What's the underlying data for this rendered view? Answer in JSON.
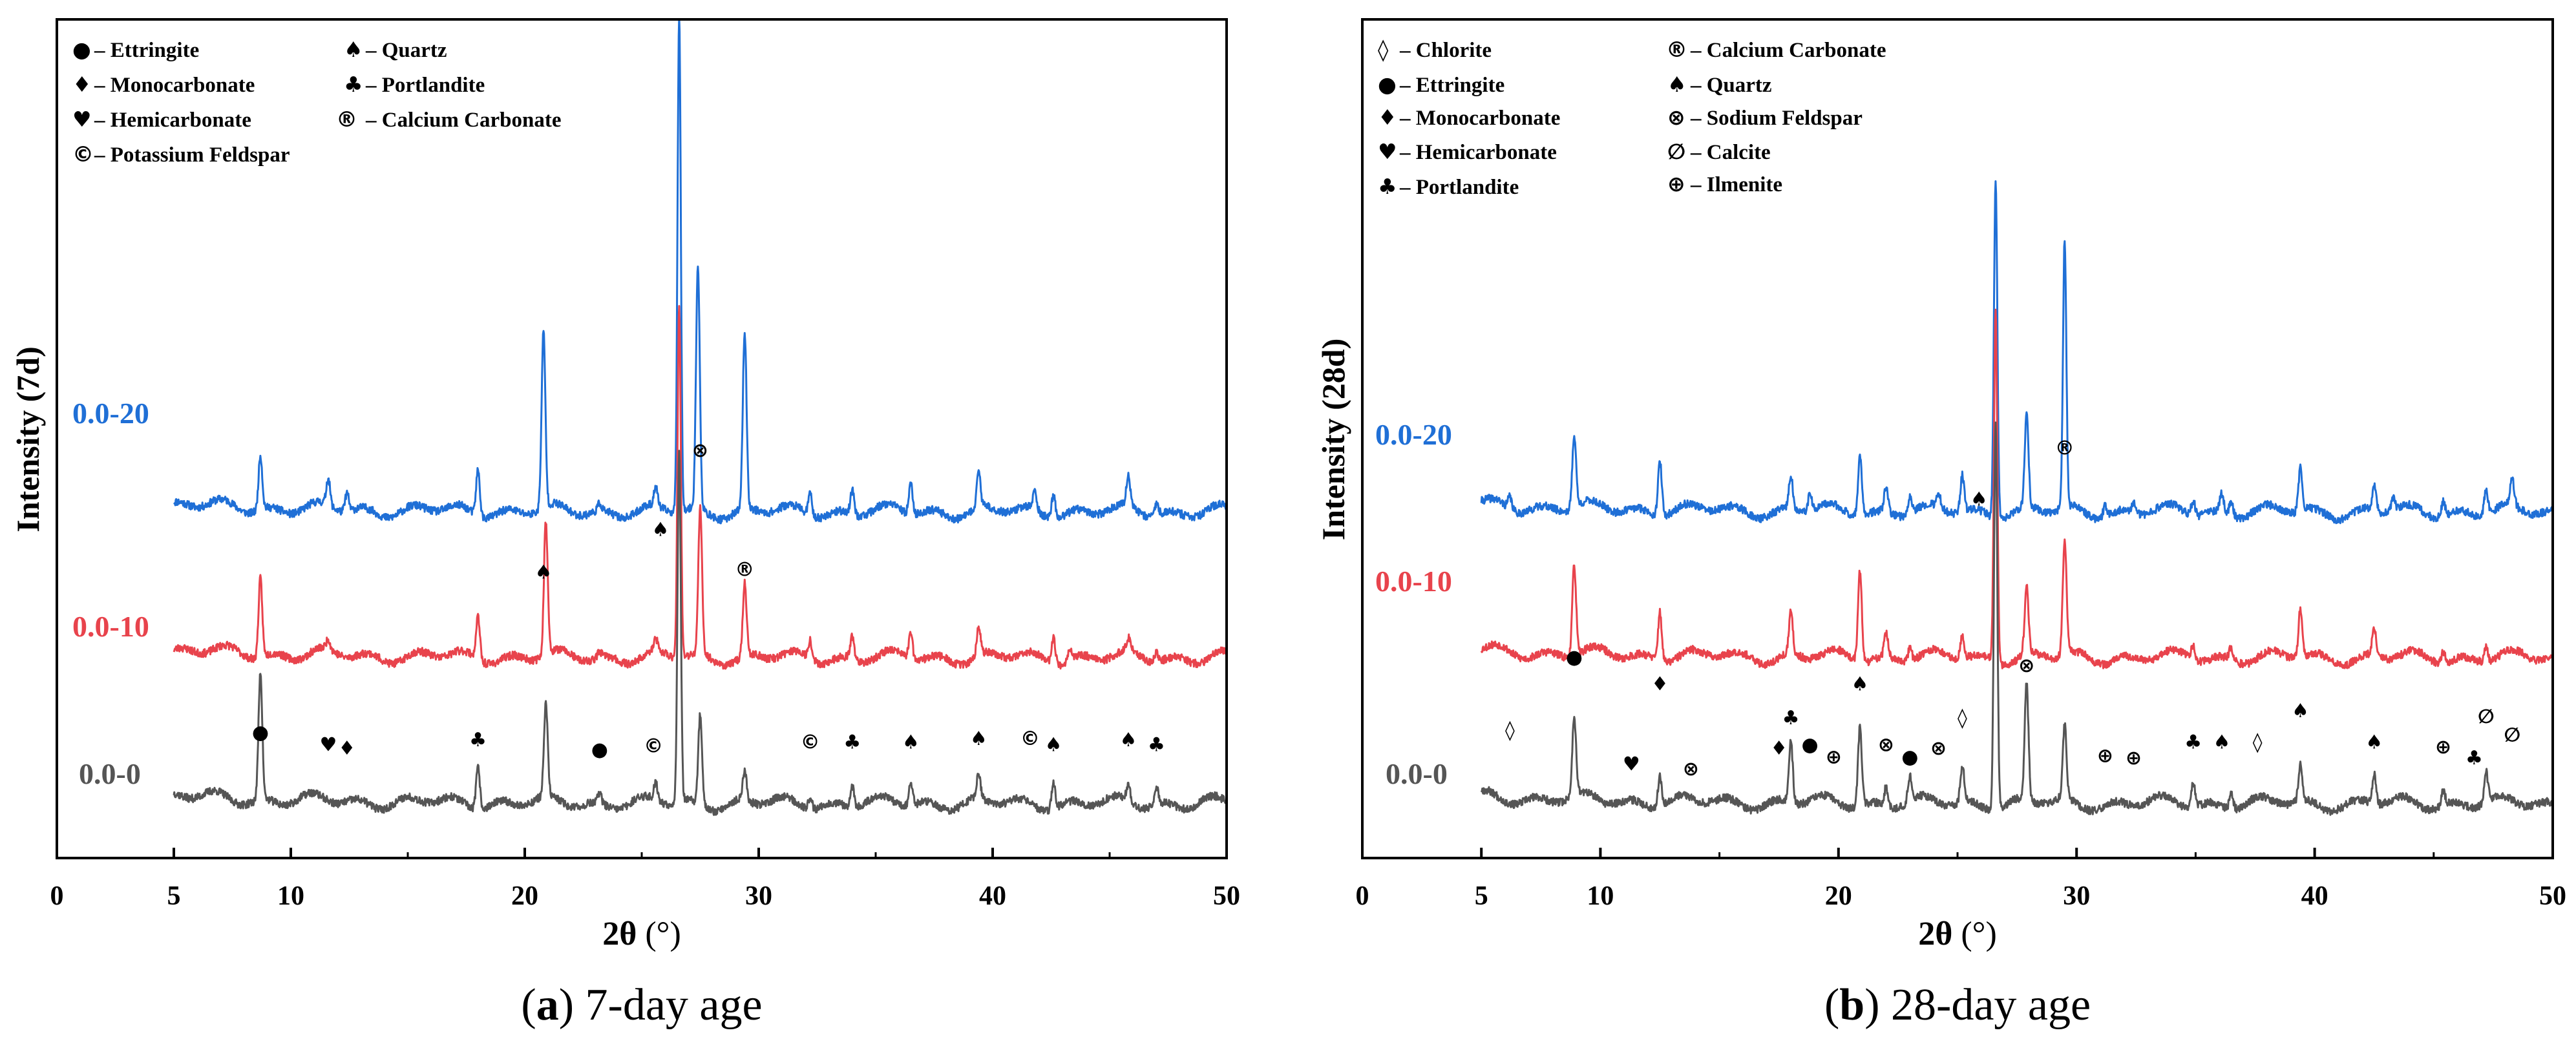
{
  "figure": {
    "panels": [
      {
        "caption_letter": "a",
        "caption_text": " 7-day age",
        "ylabel": "Intensity (7d)",
        "xlabel_symbol": "2θ",
        "xlabel_unit": " (°)",
        "legend": [
          {
            "symbol": "●",
            "label": "– Ettringite"
          },
          {
            "symbol": "♠",
            "label": "– Quartz"
          },
          {
            "symbol": "♦",
            "label": "– Monocarbonate"
          },
          {
            "symbol": "♣",
            "label": "– Portlandite"
          },
          {
            "symbol": "♥",
            "label": "– Hemicarbonate"
          },
          {
            "symbol": "®",
            "label": "– Calcium Carbonate"
          },
          {
            "symbol": "©",
            "label": "– Potassium Feldspar"
          }
        ],
        "markers": [
          {
            "symbol": "●",
            "x": 8.7,
            "int": 0.58
          },
          {
            "symbol": "♥",
            "x": 11.6,
            "int": 0.48
          },
          {
            "symbol": "♦",
            "x": 12.4,
            "int": 0.45
          },
          {
            "symbol": "♣",
            "x": 18.0,
            "int": 0.52
          },
          {
            "symbol": "♠",
            "x": 20.8,
            "int": 1.9
          },
          {
            "symbol": "●",
            "x": 23.2,
            "int": 0.44
          },
          {
            "symbol": "©",
            "x": 25.5,
            "int": 0.47
          },
          {
            "symbol": "♠",
            "x": 25.8,
            "int": 2.25
          },
          {
            "symbol": "⊗",
            "x": 27.5,
            "int": 2.9
          },
          {
            "symbol": "®",
            "x": 29.4,
            "int": 1.92
          },
          {
            "symbol": "©",
            "x": 32.2,
            "int": 0.5
          },
          {
            "symbol": "♣",
            "x": 34.0,
            "int": 0.5
          },
          {
            "symbol": "♠",
            "x": 36.5,
            "int": 0.5
          },
          {
            "symbol": "♠",
            "x": 39.4,
            "int": 0.53
          },
          {
            "symbol": "©",
            "x": 41.6,
            "int": 0.53
          },
          {
            "symbol": "♠",
            "x": 42.6,
            "int": 0.48
          },
          {
            "symbol": "♠",
            "x": 45.8,
            "int": 0.52
          },
          {
            "symbol": "♣",
            "x": 47.0,
            "int": 0.48
          }
        ]
      },
      {
        "caption_letter": "b",
        "caption_text": " 28-day age",
        "ylabel": "Intensity (28d)",
        "xlabel_symbol": "2θ",
        "xlabel_unit": " (°)",
        "legend": [
          {
            "symbol": "◊",
            "label": "– Chlorite"
          },
          {
            "symbol": "●",
            "label": "– Ettringite"
          },
          {
            "symbol": "♦",
            "label": "– Monocarbonate"
          },
          {
            "symbol": "♥",
            "label": "– Hemicarbonate"
          },
          {
            "symbol": "♣",
            "label": "– Portlandite"
          },
          {
            "symbol": "®",
            "label": "– Calcium Carbonate"
          },
          {
            "symbol": "♠",
            "label": "– Quartz"
          },
          {
            "symbol": "⊗",
            "label": "– Sodium Feldspar"
          },
          {
            "symbol": "∅",
            "label": "– Calcite"
          },
          {
            "symbol": "⊕",
            "label": "– Ilmenite"
          }
        ],
        "markers": [
          {
            "symbol": "◊",
            "x": 6.2,
            "int": 0.6
          },
          {
            "symbol": "●",
            "x": 8.9,
            "int": 1.2
          },
          {
            "symbol": "♥",
            "x": 11.3,
            "int": 0.32
          },
          {
            "symbol": "♦",
            "x": 12.5,
            "int": 0.98
          },
          {
            "symbol": "⊗",
            "x": 13.8,
            "int": 0.28
          },
          {
            "symbol": "♦",
            "x": 17.5,
            "int": 0.45
          },
          {
            "symbol": "♣",
            "x": 18.0,
            "int": 0.7
          },
          {
            "symbol": "●",
            "x": 18.8,
            "int": 0.48
          },
          {
            "symbol": "⊕",
            "x": 19.8,
            "int": 0.38
          },
          {
            "symbol": "♠",
            "x": 20.9,
            "int": 0.98
          },
          {
            "symbol": "⊗",
            "x": 22.0,
            "int": 0.48
          },
          {
            "symbol": "●",
            "x": 23.0,
            "int": 0.38
          },
          {
            "symbol": "⊗",
            "x": 24.2,
            "int": 0.45
          },
          {
            "symbol": "◊",
            "x": 25.2,
            "int": 0.7
          },
          {
            "symbol": "♠",
            "x": 25.9,
            "int": 2.5
          },
          {
            "symbol": "⊗",
            "x": 27.9,
            "int": 1.13
          },
          {
            "symbol": "®",
            "x": 29.5,
            "int": 2.92
          },
          {
            "symbol": "⊕",
            "x": 31.2,
            "int": 0.39
          },
          {
            "symbol": "⊕",
            "x": 32.4,
            "int": 0.37
          },
          {
            "symbol": "♣",
            "x": 34.9,
            "int": 0.5
          },
          {
            "symbol": "♠",
            "x": 36.1,
            "int": 0.5
          },
          {
            "symbol": "◊",
            "x": 37.6,
            "int": 0.5
          },
          {
            "symbol": "♠",
            "x": 39.4,
            "int": 0.76
          },
          {
            "symbol": "♠",
            "x": 42.5,
            "int": 0.5
          },
          {
            "symbol": "⊕",
            "x": 45.4,
            "int": 0.46
          },
          {
            "symbol": "♣",
            "x": 46.7,
            "int": 0.37
          },
          {
            "symbol": "∅",
            "x": 47.2,
            "int": 0.71
          },
          {
            "symbol": "∅",
            "x": 48.3,
            "int": 0.56
          }
        ]
      }
    ]
  },
  "chart_data": [
    {
      "type": "line",
      "title": "(a) 7-day age",
      "xlabel": "2θ (°)",
      "ylabel": "Intensity (7d)",
      "xlim": [
        0,
        50
      ],
      "ylim": [
        -0.4,
        6.5
      ],
      "xticks": [
        0,
        5,
        10,
        20,
        30,
        40,
        50
      ],
      "tick_labels": [
        "0",
        "5",
        "10",
        "20",
        "30",
        "40",
        "50"
      ],
      "series": [
        {
          "name": "0.0-20",
          "color": "#1f6fd6",
          "offset": 2.4,
          "seed": 11,
          "peaks": [
            [
              8.7,
              0.45
            ],
            [
              11.6,
              0.22
            ],
            [
              12.4,
              0.15
            ],
            [
              18.0,
              0.38
            ],
            [
              20.8,
              1.45
            ],
            [
              23.2,
              0.06
            ],
            [
              25.6,
              0.15
            ],
            [
              26.6,
              4.1
            ],
            [
              27.4,
              2.0
            ],
            [
              29.4,
              1.45
            ],
            [
              32.2,
              0.18
            ],
            [
              34.0,
              0.2
            ],
            [
              36.5,
              0.25
            ],
            [
              39.4,
              0.3
            ],
            [
              41.8,
              0.15
            ],
            [
              42.6,
              0.2
            ],
            [
              45.8,
              0.25
            ],
            [
              47.0,
              0.1
            ]
          ]
        },
        {
          "name": "0.0-10",
          "color": "#e8434c",
          "offset": 1.2,
          "seed": 23,
          "peaks": [
            [
              8.7,
              0.65
            ],
            [
              11.6,
              0.08
            ],
            [
              18.0,
              0.35
            ],
            [
              20.9,
              1.1
            ],
            [
              23.2,
              0.05
            ],
            [
              25.6,
              0.1
            ],
            [
              26.6,
              2.9
            ],
            [
              27.5,
              1.2
            ],
            [
              29.4,
              0.6
            ],
            [
              32.2,
              0.15
            ],
            [
              34.0,
              0.18
            ],
            [
              36.5,
              0.2
            ],
            [
              39.4,
              0.25
            ],
            [
              42.6,
              0.22
            ],
            [
              43.3,
              0.1
            ],
            [
              45.8,
              0.1
            ],
            [
              47.0,
              0.08
            ]
          ]
        },
        {
          "name": "0.0-0",
          "color": "#555555",
          "offset": 0.0,
          "seed": 37,
          "peaks": [
            [
              8.7,
              1.05
            ],
            [
              18.0,
              0.35
            ],
            [
              20.9,
              0.75
            ],
            [
              23.2,
              0.08
            ],
            [
              25.6,
              0.15
            ],
            [
              26.6,
              2.9
            ],
            [
              27.5,
              0.75
            ],
            [
              29.4,
              0.25
            ],
            [
              32.2,
              0.1
            ],
            [
              34.0,
              0.18
            ],
            [
              36.5,
              0.2
            ],
            [
              39.4,
              0.2
            ],
            [
              42.6,
              0.22
            ],
            [
              45.8,
              0.14
            ],
            [
              47.0,
              0.14
            ]
          ]
        }
      ]
    },
    {
      "type": "line",
      "title": "(b) 28-day age",
      "xlabel": "2θ (°)",
      "ylabel": "Intensity (28d)",
      "xlim": [
        0,
        50
      ],
      "ylim": [
        -0.4,
        6.5
      ],
      "xticks": [
        0,
        5,
        10,
        20,
        30,
        40,
        50
      ],
      "tick_labels": [
        "0",
        "5",
        "10",
        "20",
        "30",
        "40",
        "50"
      ],
      "series": [
        {
          "name": "0.0-20",
          "color": "#1f6fd6",
          "offset": 2.4,
          "seed": 41,
          "peaks": [
            [
              6.2,
              0.1
            ],
            [
              8.9,
              0.6
            ],
            [
              12.5,
              0.45
            ],
            [
              18.0,
              0.28
            ],
            [
              18.8,
              0.15
            ],
            [
              20.9,
              0.5
            ],
            [
              22.0,
              0.2
            ],
            [
              23.0,
              0.15
            ],
            [
              24.2,
              0.12
            ],
            [
              25.2,
              0.3
            ],
            [
              26.6,
              2.8
            ],
            [
              27.9,
              0.75
            ],
            [
              29.5,
              2.2
            ],
            [
              31.2,
              0.1
            ],
            [
              32.4,
              0.08
            ],
            [
              34.9,
              0.12
            ],
            [
              36.1,
              0.15
            ],
            [
              36.5,
              0.12
            ],
            [
              39.4,
              0.35
            ],
            [
              42.5,
              0.2
            ],
            [
              43.3,
              0.1
            ],
            [
              45.4,
              0.12
            ],
            [
              47.2,
              0.2
            ],
            [
              48.3,
              0.22
            ]
          ]
        },
        {
          "name": "0.0-10",
          "color": "#e8434c",
          "offset": 1.2,
          "seed": 53,
          "peaks": [
            [
              8.9,
              0.75
            ],
            [
              12.5,
              0.4
            ],
            [
              18.0,
              0.35
            ],
            [
              20.9,
              0.75
            ],
            [
              22.0,
              0.2
            ],
            [
              23.0,
              0.12
            ],
            [
              25.2,
              0.2
            ],
            [
              26.6,
              2.9
            ],
            [
              27.9,
              0.55
            ],
            [
              29.5,
              0.95
            ],
            [
              34.9,
              0.12
            ],
            [
              36.5,
              0.1
            ],
            [
              39.4,
              0.4
            ],
            [
              42.5,
              0.22
            ],
            [
              45.4,
              0.1
            ],
            [
              47.2,
              0.12
            ]
          ]
        },
        {
          "name": "0.0-0",
          "color": "#555555",
          "offset": 0.0,
          "seed": 67,
          "peaks": [
            [
              8.9,
              0.65
            ],
            [
              12.5,
              0.25
            ],
            [
              18.0,
              0.5
            ],
            [
              20.9,
              0.65
            ],
            [
              22.0,
              0.15
            ],
            [
              23.0,
              0.2
            ],
            [
              25.2,
              0.3
            ],
            [
              26.6,
              3.2
            ],
            [
              27.9,
              0.95
            ],
            [
              29.5,
              0.6
            ],
            [
              34.9,
              0.2
            ],
            [
              36.5,
              0.12
            ],
            [
              39.4,
              0.3
            ],
            [
              42.5,
              0.25
            ],
            [
              45.4,
              0.12
            ],
            [
              47.2,
              0.25
            ]
          ]
        }
      ]
    }
  ]
}
